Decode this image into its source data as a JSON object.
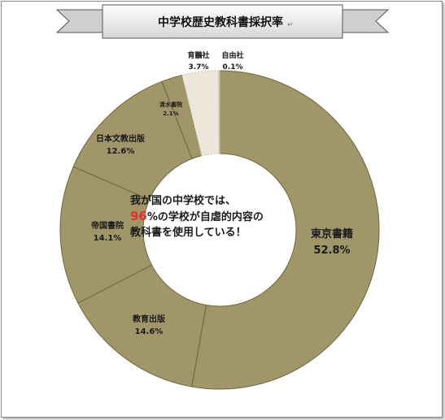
{
  "banner": {
    "title": "中学校歴史教科書採択率",
    "mark": "↵"
  },
  "center_note": {
    "line1": "我が国の中学校では、",
    "line2_highlight": "96",
    "line2_rest": "%の学校が自虐的内容の",
    "line3": "教科書を使用している！"
  },
  "colors": {
    "main": "#a09669",
    "dark": "#8a7f55",
    "light": "#ede6da",
    "stroke": "#ffffff"
  },
  "chart_data": {
    "type": "pie",
    "variant": "donut",
    "title": "中学校歴史教科書採択率",
    "slices": [
      {
        "name": "東京書籍",
        "value": 52.8,
        "pct_label": "52.8%"
      },
      {
        "name": "教育出版",
        "value": 14.6,
        "pct_label": "14.6%"
      },
      {
        "name": "帝国書院",
        "value": 14.1,
        "pct_label": "14.1%"
      },
      {
        "name": "日本文教出版",
        "value": 12.6,
        "pct_label": "12.6%"
      },
      {
        "name": "清水書院",
        "value": 2.1,
        "pct_label": "2.1%"
      },
      {
        "name": "育鵬社",
        "value": 3.7,
        "pct_label": "3.7%"
      },
      {
        "name": "自由社",
        "value": 0.1,
        "pct_label": "0.1%"
      }
    ]
  }
}
